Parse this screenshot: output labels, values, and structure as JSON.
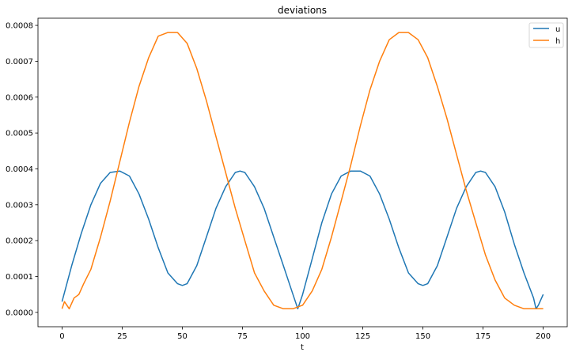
{
  "chart_data": {
    "type": "line",
    "title": "deviations",
    "xlabel": "t",
    "ylabel": "",
    "xlim": [
      -10,
      210
    ],
    "ylim": [
      -4e-05,
      0.00082
    ],
    "xticks": [
      0,
      25,
      50,
      75,
      100,
      125,
      150,
      175,
      200
    ],
    "xtick_labels": [
      "0",
      "25",
      "50",
      "75",
      "100",
      "125",
      "150",
      "175",
      "200"
    ],
    "yticks": [
      0.0,
      0.0001,
      0.0002,
      0.0003,
      0.0004,
      0.0005,
      0.0006,
      0.0007,
      0.0008
    ],
    "ytick_labels": [
      "0.0000",
      "0.0001",
      "0.0002",
      "0.0003",
      "0.0004",
      "0.0005",
      "0.0006",
      "0.0007",
      "0.0008"
    ],
    "grid": false,
    "legend_position": "top-right",
    "series": [
      {
        "name": "u",
        "color": "#1f77b4",
        "x": [
          0,
          4,
          8,
          12,
          16,
          20,
          24,
          28,
          32,
          36,
          40,
          44,
          48,
          50,
          52,
          56,
          60,
          64,
          68,
          72,
          74,
          76,
          80,
          84,
          88,
          92,
          96,
          98,
          100,
          104,
          108,
          112,
          116,
          120,
          124,
          128,
          132,
          136,
          140,
          144,
          148,
          150,
          152,
          156,
          160,
          164,
          168,
          172,
          174,
          176,
          180,
          184,
          188,
          192,
          196,
          197,
          198,
          200
        ],
        "y": [
          3e-05,
          0.00013,
          0.00022,
          0.0003,
          0.00036,
          0.00039,
          0.000394,
          0.00038,
          0.00033,
          0.00026,
          0.00018,
          0.00011,
          8e-05,
          7.5e-05,
          8e-05,
          0.00013,
          0.00021,
          0.00029,
          0.00035,
          0.00039,
          0.000394,
          0.00039,
          0.00035,
          0.00029,
          0.00021,
          0.00013,
          5e-05,
          1e-05,
          5e-05,
          0.00015,
          0.00025,
          0.00033,
          0.00038,
          0.000394,
          0.000394,
          0.00038,
          0.00033,
          0.00026,
          0.00018,
          0.00011,
          8e-05,
          7.5e-05,
          8e-05,
          0.00013,
          0.00021,
          0.00029,
          0.00035,
          0.00039,
          0.000394,
          0.00039,
          0.00035,
          0.00028,
          0.00019,
          0.00011,
          4e-05,
          1e-05,
          2e-05,
          5e-05
        ]
      },
      {
        "name": "h",
        "color": "#ff7f0e",
        "x": [
          0,
          1,
          3,
          5,
          7,
          9,
          12,
          16,
          20,
          24,
          28,
          32,
          36,
          40,
          44,
          48,
          52,
          56,
          60,
          64,
          68,
          72,
          76,
          80,
          84,
          88,
          92,
          96,
          100,
          104,
          108,
          112,
          116,
          120,
          124,
          128,
          132,
          136,
          140,
          144,
          148,
          152,
          156,
          160,
          164,
          168,
          172,
          176,
          180,
          184,
          188,
          192,
          196,
          200
        ],
        "y": [
          1e-05,
          3e-05,
          1e-05,
          4e-05,
          5e-05,
          8e-05,
          0.00012,
          0.00021,
          0.00031,
          0.00042,
          0.00053,
          0.00063,
          0.00071,
          0.00077,
          0.00078,
          0.00078,
          0.00075,
          0.00068,
          0.00059,
          0.00049,
          0.00039,
          0.00029,
          0.0002,
          0.00011,
          6e-05,
          2e-05,
          1e-05,
          1e-05,
          2e-05,
          6e-05,
          0.00012,
          0.00021,
          0.00031,
          0.00041,
          0.00052,
          0.00062,
          0.0007,
          0.00076,
          0.00078,
          0.00078,
          0.00076,
          0.00071,
          0.00063,
          0.00054,
          0.00044,
          0.00034,
          0.00025,
          0.00016,
          9e-05,
          4e-05,
          2e-05,
          1e-05,
          1e-05,
          1e-05
        ]
      }
    ]
  }
}
